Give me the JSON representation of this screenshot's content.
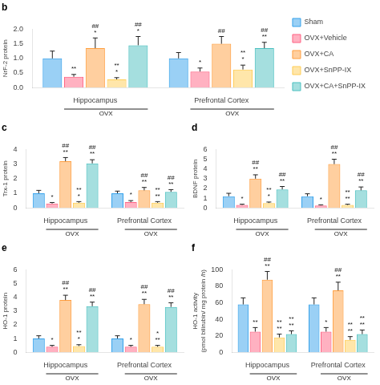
{
  "chart_data": [
    {
      "type": "bar",
      "title": "b",
      "categories": [
        "Hippocampus",
        "Prefrontal Cortex"
      ],
      "y_label": "NrF-2 protein",
      "ylim": [
        0,
        2.0
      ],
      "yticks": [
        {
          "value": 0,
          "label": "0.0"
        },
        0.5,
        {
          "value": 1,
          "label": "1.0"
        },
        1.5,
        {
          "value": 2,
          "label": "2.0"
        }
      ],
      "grid": false,
      "legend": "right",
      "series": [
        {
          "name": "Sham",
          "values": [
            1.0,
            1.0
          ],
          "errors": [
            0.25,
            0.2
          ]
        },
        {
          "name": "OVX+Vehicle",
          "values": [
            0.37,
            0.55
          ],
          "errors": [
            0.08,
            0.12
          ],
          "annotations": [
            "**",
            "*"
          ]
        },
        {
          "name": "OVX+CA",
          "values": [
            1.35,
            1.5
          ],
          "errors": [
            0.35,
            0.25
          ],
          "annotations": [
            "##\n*",
            "##"
          ]
        },
        {
          "name": "OVX+SnPP-IX",
          "values": [
            0.28,
            0.62
          ],
          "errors": [
            0.06,
            0.15
          ],
          "annotations": [
            "**\n*",
            "**\n*"
          ]
        },
        {
          "name": "OVX+CA+SnPP-IX",
          "values": [
            1.45,
            1.35
          ],
          "errors": [
            0.3,
            0.2
          ],
          "annotations": [
            "##\n*",
            "##\n**"
          ]
        }
      ],
      "annotations": [
        {
          "text": "OVX",
          "series": [
            "OVX+Vehicle",
            "OVX+CA",
            "OVX+SnPP-IX",
            "OVX+CA+SnPP-IX"
          ]
        }
      ]
    },
    {
      "type": "bar",
      "title": "c",
      "categories": [
        "Hippocampus",
        "Prefrontal Cortex"
      ],
      "y_label": "Trx-1 protein",
      "ylim": [
        0,
        4
      ],
      "yticks": [
        0,
        1,
        2,
        3,
        4
      ],
      "grid": false,
      "series": [
        {
          "name": "Sham",
          "values": [
            1.0,
            1.0
          ],
          "errors": [
            0.2,
            0.15
          ]
        },
        {
          "name": "OVX+Vehicle",
          "values": [
            0.3,
            0.4
          ],
          "errors": [
            0.07,
            0.1
          ],
          "annotations": [
            "*",
            "*"
          ]
        },
        {
          "name": "OVX+CA",
          "values": [
            3.2,
            1.2
          ],
          "errors": [
            0.25,
            0.2
          ],
          "annotations": [
            "##\n**",
            "##\n**"
          ]
        },
        {
          "name": "OVX+SnPP-IX",
          "values": [
            0.35,
            0.35
          ],
          "errors": [
            0.08,
            0.08
          ],
          "annotations": [
            "**\n*",
            "**\n**"
          ]
        },
        {
          "name": "OVX+CA+SnPP-IX",
          "values": [
            3.05,
            1.1
          ],
          "errors": [
            0.25,
            0.15
          ],
          "annotations": [
            "##\n**",
            "##\n**"
          ]
        }
      ],
      "annotations": [
        {
          "text": "OVX",
          "series": [
            "OVX+Vehicle",
            "OVX+CA",
            "OVX+SnPP-IX",
            "OVX+CA+SnPP-IX"
          ]
        }
      ]
    },
    {
      "type": "bar",
      "title": "d",
      "categories": [
        "Hippocampus",
        "Prefrontal Cortex"
      ],
      "y_label": "BDNF protein",
      "ylim": [
        0,
        6
      ],
      "yticks": [
        0,
        1,
        2,
        3,
        4,
        5,
        6
      ],
      "grid": false,
      "series": [
        {
          "name": "Sham",
          "values": [
            1.2,
            1.2
          ],
          "errors": [
            0.3,
            0.25
          ]
        },
        {
          "name": "OVX+Vehicle",
          "values": [
            0.3,
            0.25
          ],
          "errors": [
            0.08,
            0.07
          ],
          "annotations": [
            "*",
            "*"
          ]
        },
        {
          "name": "OVX+CA",
          "values": [
            3.0,
            4.5
          ],
          "errors": [
            0.4,
            0.5
          ],
          "annotations": [
            "##\n**",
            "##\n**"
          ]
        },
        {
          "name": "OVX+SnPP-IX",
          "values": [
            0.5,
            0.3
          ],
          "errors": [
            0.1,
            0.08
          ],
          "annotations": [
            "**\n*",
            "**\n**"
          ]
        },
        {
          "name": "OVX+CA+SnPP-IX",
          "values": [
            1.9,
            1.8
          ],
          "errors": [
            0.3,
            0.35
          ],
          "annotations": [
            "##\n**",
            "##\n**"
          ]
        }
      ],
      "annotations": [
        {
          "text": "OVX",
          "series": [
            "OVX+Vehicle",
            "OVX+CA",
            "OVX+SnPP-IX",
            "OVX+CA+SnPP-IX"
          ]
        }
      ]
    },
    {
      "type": "bar",
      "title": "e",
      "categories": [
        "Hippocampus",
        "Prefrontal Cortex"
      ],
      "y_label": "HO-1 protein",
      "ylim": [
        0,
        6
      ],
      "yticks": [
        0,
        1,
        2,
        3,
        4,
        5,
        6
      ],
      "grid": false,
      "series": [
        {
          "name": "Sham",
          "values": [
            1.0,
            1.0
          ],
          "errors": [
            0.2,
            0.2
          ]
        },
        {
          "name": "OVX+Vehicle",
          "values": [
            0.4,
            0.4
          ],
          "errors": [
            0.1,
            0.1
          ],
          "annotations": [
            "*",
            "*"
          ]
        },
        {
          "name": "OVX+CA",
          "values": [
            3.8,
            3.5
          ],
          "errors": [
            0.35,
            0.35
          ],
          "annotations": [
            "##\n**",
            "##\n**"
          ]
        },
        {
          "name": "OVX+SnPP-IX",
          "values": [
            0.45,
            0.4
          ],
          "errors": [
            0.1,
            0.1
          ],
          "annotations": [
            "**\n*",
            "*\n**"
          ]
        },
        {
          "name": "OVX+CA+SnPP-IX",
          "values": [
            3.35,
            3.3
          ],
          "errors": [
            0.3,
            0.3
          ],
          "annotations": [
            "##\n**",
            "##\n**"
          ]
        }
      ],
      "annotations": [
        {
          "text": "OVX",
          "series": [
            "OVX+Vehicle",
            "OVX+CA",
            "OVX+SnPP-IX",
            "OVX+CA+SnPP-IX"
          ]
        }
      ]
    },
    {
      "type": "bar",
      "title": "f",
      "categories": [
        "Hippocampus",
        "Prefrontal Cortex"
      ],
      "y_label": "HO-1 activity\n(pmol bilirubin/ mg protein /h)",
      "ylim": [
        0,
        100
      ],
      "yticks": [
        0,
        20,
        40,
        60,
        80,
        100
      ],
      "grid": false,
      "series": [
        {
          "name": "Sham",
          "values": [
            58,
            58
          ],
          "errors": [
            8,
            8
          ]
        },
        {
          "name": "OVX+Vehicle",
          "values": [
            25,
            25
          ],
          "errors": [
            5,
            5
          ],
          "annotations": [
            "**",
            "*"
          ]
        },
        {
          "name": "OVX+CA",
          "values": [
            88,
            75
          ],
          "errors": [
            10,
            10
          ],
          "annotations": [
            "##\n**",
            "##\n**"
          ]
        },
        {
          "name": "OVX+SnPP-IX",
          "values": [
            18,
            15
          ],
          "errors": [
            4,
            4
          ],
          "annotations": [
            "**\n**",
            "**\n**"
          ]
        },
        {
          "name": "OVX+CA+SnPP-IX",
          "values": [
            22,
            22
          ],
          "errors": [
            4,
            5
          ],
          "annotations": [
            "**\n**",
            "**\n**"
          ]
        }
      ],
      "annotations": [
        {
          "text": "OVX",
          "series": [
            "OVX+Vehicle",
            "OVX+CA",
            "OVX+SnPP-IX",
            "OVX+CA+SnPP-IX"
          ]
        }
      ]
    }
  ]
}
